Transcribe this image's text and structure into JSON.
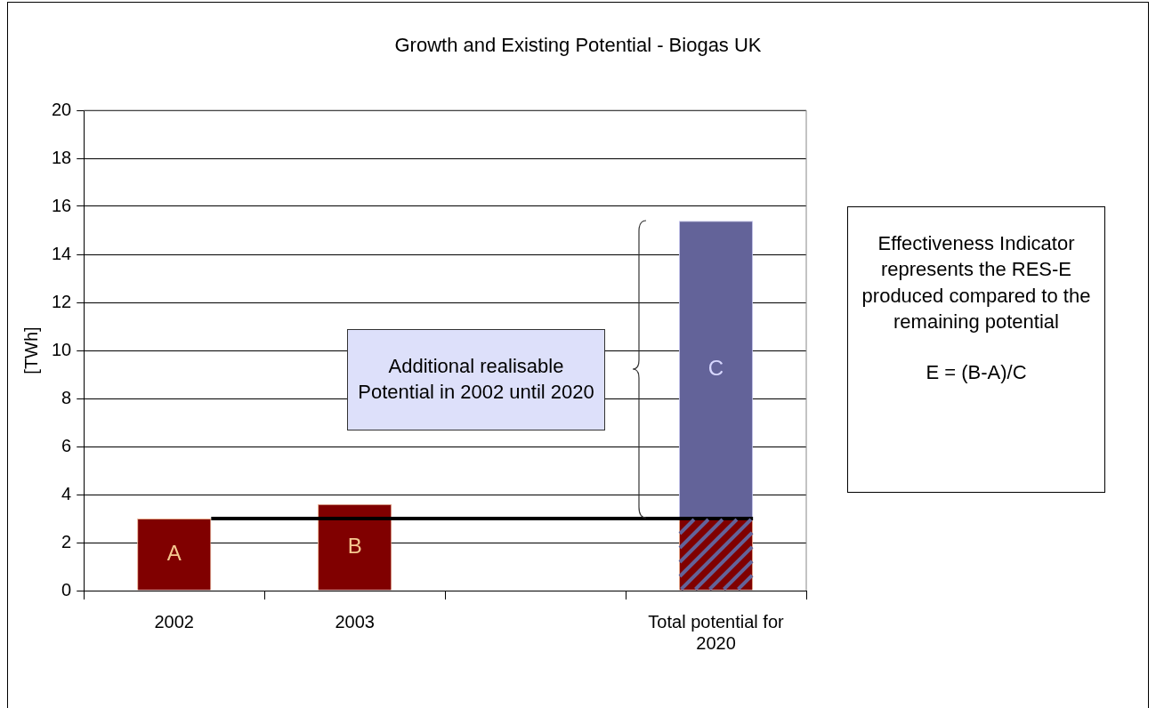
{
  "chart_data": {
    "type": "bar",
    "title": "Growth and Existing Potential - Biogas UK",
    "ylabel": "[TWh]",
    "categories": [
      "2002",
      "2003",
      null,
      "Total potential for 2020"
    ],
    "stacked": true,
    "series": [
      {
        "color": "#800000",
        "values": [
          3.0,
          3.6,
          null,
          3.0
        ],
        "value_labels": [
          "A",
          "B",
          null,
          null
        ]
      },
      {
        "color": "#636399",
        "values": [
          null,
          null,
          null,
          12.4
        ],
        "value_labels": [
          null,
          null,
          null,
          "C"
        ]
      }
    ],
    "ylim": [
      0,
      20
    ],
    "yticks": [
      0,
      2,
      4,
      6,
      8,
      10,
      12,
      14,
      16,
      18,
      20
    ],
    "grid": "y",
    "legend": false,
    "ref_lines": [
      {
        "axis": "y",
        "value": 3,
        "color": "#000000"
      }
    ],
    "annotations": [
      "Additional realisable Potential in 2002 until 2020",
      "Effectiveness Indicator represents the RES-E produced compared to the remaining potential",
      "E = (B-A)/C"
    ]
  }
}
